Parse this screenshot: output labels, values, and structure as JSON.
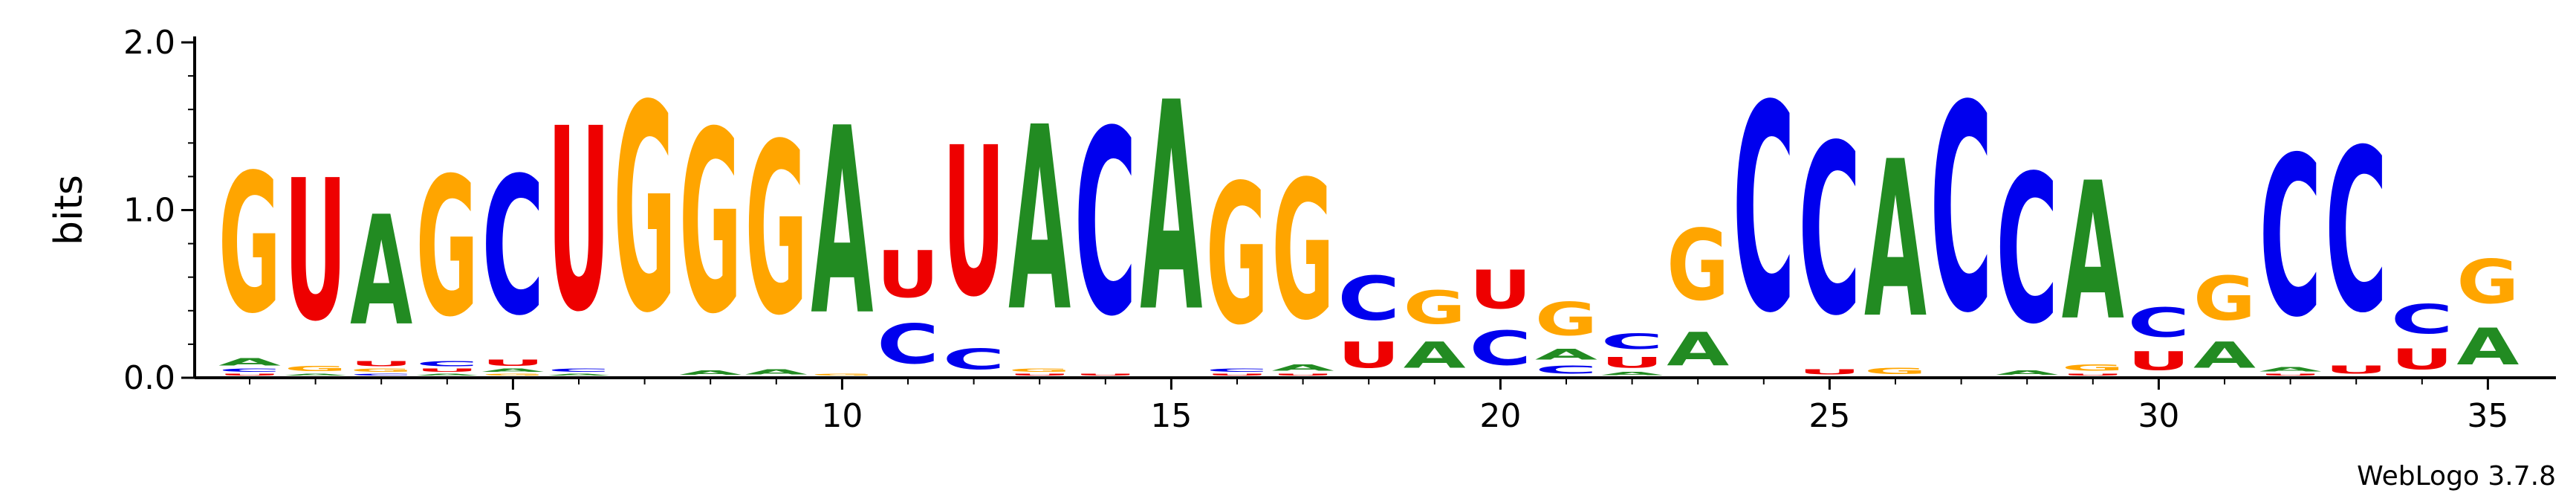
{
  "footer": {
    "software": "WebLogo 3.7.8"
  },
  "colors": {
    "A": "#228b22",
    "C": "#0000ee",
    "G": "#ffa500",
    "U": "#ee0000"
  },
  "chart_data": {
    "type": "sequence-logo",
    "title": "",
    "xlabel": "",
    "ylabel": "bits",
    "ylim": [
      0,
      2.0
    ],
    "yticks": [
      "0.0",
      "1.0",
      "2.0"
    ],
    "xticks": [
      5,
      10,
      15,
      20,
      25,
      30,
      35
    ],
    "positions": [
      {
        "pos": 1,
        "letters": [
          {
            "l": "U",
            "h": 0.02
          },
          {
            "l": "C",
            "h": 0.03
          },
          {
            "l": "A",
            "h": 0.07
          },
          {
            "l": "G",
            "h": 1.33
          }
        ]
      },
      {
        "pos": 2,
        "letters": [
          {
            "l": "A",
            "h": 0.02
          },
          {
            "l": "G",
            "h": 0.05
          },
          {
            "l": "U",
            "h": 1.35
          }
        ]
      },
      {
        "pos": 3,
        "letters": [
          {
            "l": "C",
            "h": 0.02
          },
          {
            "l": "G",
            "h": 0.03
          },
          {
            "l": "U",
            "h": 0.05
          },
          {
            "l": "A",
            "h": 1.05
          }
        ]
      },
      {
        "pos": 4,
        "letters": [
          {
            "l": "A",
            "h": 0.02
          },
          {
            "l": "U",
            "h": 0.03
          },
          {
            "l": "C",
            "h": 0.05
          },
          {
            "l": "G",
            "h": 1.33
          }
        ]
      },
      {
        "pos": 5,
        "letters": [
          {
            "l": "G",
            "h": 0.02
          },
          {
            "l": "A",
            "h": 0.03
          },
          {
            "l": "U",
            "h": 0.06
          },
          {
            "l": "C",
            "h": 1.32
          }
        ]
      },
      {
        "pos": 6,
        "letters": [
          {
            "l": "A",
            "h": 0.02
          },
          {
            "l": "C",
            "h": 0.03
          },
          {
            "l": "U",
            "h": 1.75
          }
        ]
      },
      {
        "pos": 7,
        "letters": [
          {
            "l": "G",
            "h": 1.98
          }
        ]
      },
      {
        "pos": 8,
        "letters": [
          {
            "l": "A",
            "h": 0.04
          },
          {
            "l": "G",
            "h": 1.74
          }
        ]
      },
      {
        "pos": 9,
        "letters": [
          {
            "l": "A",
            "h": 0.05
          },
          {
            "l": "G",
            "h": 1.64
          }
        ]
      },
      {
        "pos": 10,
        "letters": [
          {
            "l": "G",
            "h": 0.02
          },
          {
            "l": "A",
            "h": 1.79
          }
        ]
      },
      {
        "pos": 11,
        "letters": [
          {
            "l": "C",
            "h": 0.38
          },
          {
            "l": "U",
            "h": 0.45
          }
        ]
      },
      {
        "pos": 12,
        "letters": [
          {
            "l": "C",
            "h": 0.2
          },
          {
            "l": "U",
            "h": 1.43
          }
        ]
      },
      {
        "pos": 13,
        "letters": [
          {
            "l": "U",
            "h": 0.02
          },
          {
            "l": "G",
            "h": 0.03
          },
          {
            "l": "A",
            "h": 1.76
          }
        ]
      },
      {
        "pos": 14,
        "letters": [
          {
            "l": "U",
            "h": 0.02
          },
          {
            "l": "C",
            "h": 1.77
          }
        ]
      },
      {
        "pos": 15,
        "letters": [
          {
            "l": "A",
            "h": 2.0
          }
        ]
      },
      {
        "pos": 16,
        "letters": [
          {
            "l": "U",
            "h": 0.02
          },
          {
            "l": "C",
            "h": 0.03
          },
          {
            "l": "G",
            "h": 1.34
          }
        ]
      },
      {
        "pos": 17,
        "letters": [
          {
            "l": "U",
            "h": 0.02
          },
          {
            "l": "A",
            "h": 0.06
          },
          {
            "l": "G",
            "h": 1.33
          }
        ]
      },
      {
        "pos": 18,
        "letters": [
          {
            "l": "U",
            "h": 0.25
          },
          {
            "l": "C",
            "h": 0.42
          }
        ]
      },
      {
        "pos": 19,
        "letters": [
          {
            "l": "A",
            "h": 0.25
          },
          {
            "l": "G",
            "h": 0.32
          }
        ]
      },
      {
        "pos": 20,
        "letters": [
          {
            "l": "C",
            "h": 0.33
          },
          {
            "l": "U",
            "h": 0.37
          }
        ]
      },
      {
        "pos": 21,
        "letters": [
          {
            "l": "C",
            "h": 0.08
          },
          {
            "l": "A",
            "h": 0.1
          },
          {
            "l": "G",
            "h": 0.32
          }
        ]
      },
      {
        "pos": 22,
        "letters": [
          {
            "l": "A",
            "h": 0.03
          },
          {
            "l": "U",
            "h": 0.1
          },
          {
            "l": "C",
            "h": 0.15
          }
        ]
      },
      {
        "pos": 23,
        "letters": [
          {
            "l": "A",
            "h": 0.32
          },
          {
            "l": "G",
            "h": 0.68
          }
        ]
      },
      {
        "pos": 24,
        "letters": [
          {
            "l": "C",
            "h": 1.98
          }
        ]
      },
      {
        "pos": 25,
        "letters": [
          {
            "l": "U",
            "h": 0.05
          },
          {
            "l": "C",
            "h": 1.63
          }
        ]
      },
      {
        "pos": 26,
        "letters": [
          {
            "l": "G",
            "h": 0.06
          },
          {
            "l": "A",
            "h": 1.5
          }
        ]
      },
      {
        "pos": 27,
        "letters": [
          {
            "l": "C",
            "h": 1.98
          }
        ]
      },
      {
        "pos": 28,
        "letters": [
          {
            "l": "A",
            "h": 0.04
          },
          {
            "l": "C",
            "h": 1.42
          }
        ]
      },
      {
        "pos": 29,
        "letters": [
          {
            "l": "U",
            "h": 0.02
          },
          {
            "l": "G",
            "h": 0.06
          },
          {
            "l": "A",
            "h": 1.32
          }
        ]
      },
      {
        "pos": 30,
        "letters": [
          {
            "l": "U",
            "h": 0.18
          },
          {
            "l": "C",
            "h": 0.28
          }
        ]
      },
      {
        "pos": 31,
        "letters": [
          {
            "l": "A",
            "h": 0.25
          },
          {
            "l": "G",
            "h": 0.42
          }
        ]
      },
      {
        "pos": 32,
        "letters": [
          {
            "l": "U",
            "h": 0.02
          },
          {
            "l": "A",
            "h": 0.04
          },
          {
            "l": "C",
            "h": 1.53
          }
        ]
      },
      {
        "pos": 33,
        "letters": [
          {
            "l": "U",
            "h": 0.08
          },
          {
            "l": "C",
            "h": 1.56
          }
        ]
      },
      {
        "pos": 34,
        "letters": [
          {
            "l": "U",
            "h": 0.2
          },
          {
            "l": "C",
            "h": 0.28
          }
        ]
      },
      {
        "pos": 35,
        "letters": [
          {
            "l": "A",
            "h": 0.35
          },
          {
            "l": "G",
            "h": 0.42
          }
        ]
      }
    ]
  }
}
